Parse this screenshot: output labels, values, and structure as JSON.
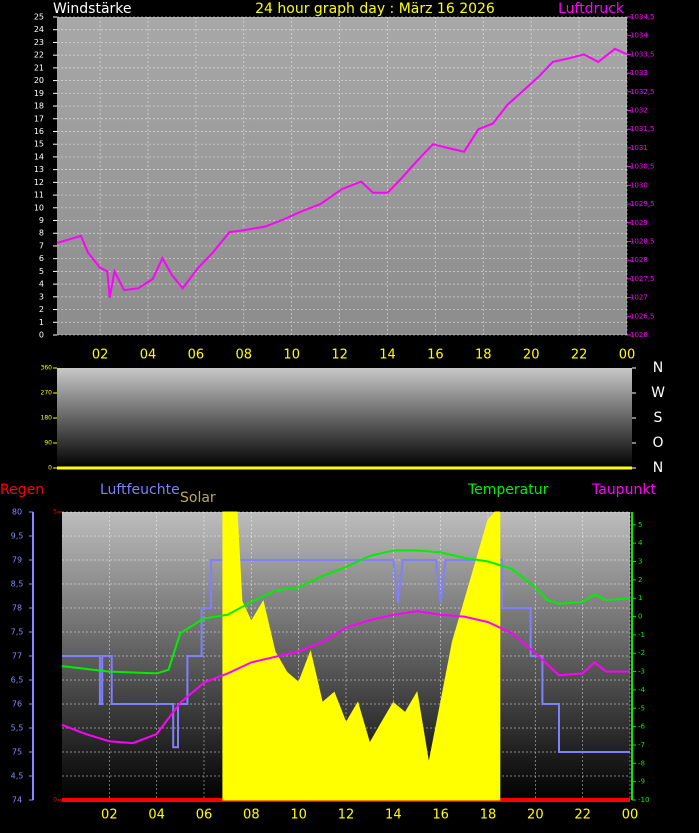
{
  "chart_data": [
    {
      "type": "line",
      "title": "24 hour graph day : März 16 2026",
      "y_label": "Windstärke",
      "xlim": [
        0.2,
        24
      ],
      "xticks": [
        {
          "value": 2,
          "label": "02"
        },
        {
          "value": 4,
          "label": "04"
        },
        {
          "value": 6,
          "label": "06"
        },
        {
          "value": 8,
          "label": "08"
        },
        10,
        12,
        14,
        16,
        18,
        20,
        22,
        {
          "value": 24,
          "label": "00"
        }
      ],
      "ylim": [
        0,
        25
      ],
      "yticks": [
        0,
        1,
        2,
        3,
        4,
        5,
        6,
        7,
        8,
        9,
        10,
        11,
        12,
        13,
        14,
        15,
        16,
        17,
        18,
        19,
        20,
        21,
        22,
        23,
        24,
        25
      ],
      "y2lim": [
        1026,
        1034.5
      ],
      "y2ticks": [
        1026,
        {
          "value": 1026.5,
          "label": "1026,5"
        },
        1027,
        {
          "value": 1027.5,
          "label": "1027,5"
        },
        1028,
        {
          "value": 1028.5,
          "label": "1028,5"
        },
        1029,
        {
          "value": 1029.5,
          "label": "1029,5"
        },
        1030,
        {
          "value": 1030.5,
          "label": "1030,5"
        },
        1031,
        {
          "value": 1031.5,
          "label": "1031,5"
        },
        1032,
        {
          "value": 1032.5,
          "label": "1032,5"
        },
        1033,
        {
          "value": 1033.5,
          "label": "1033,5"
        },
        1034,
        {
          "value": 1034.5,
          "label": "1034,5"
        }
      ],
      "grid": true,
      "series": [
        {
          "name": "Luftdruck",
          "color": "#ff00ff",
          "axis": "y2",
          "x": [
            0.2,
            1.2,
            1.5,
            2.0,
            2.3,
            2.4,
            2.6,
            3.0,
            3.6,
            4.2,
            4.6,
            5.0,
            5.45,
            6.1,
            6.7,
            7.4,
            8.0,
            8.9,
            9.7,
            10.4,
            11.2,
            12.1,
            12.9,
            13.4,
            14.0,
            14.6,
            15.3,
            15.9,
            16.5,
            17.2,
            17.8,
            18.4,
            19.0,
            19.7,
            20.3,
            20.9,
            21.6,
            22.2,
            22.8,
            23.5,
            24
          ],
          "values": [
            1028.46,
            1028.65,
            1028.2,
            1027.8,
            1027.7,
            1027,
            1027.7,
            1027.2,
            1027.25,
            1027.5,
            1028.05,
            1027.6,
            1027.25,
            1027.8,
            1028.2,
            1028.75,
            1028.8,
            1028.9,
            1029.1,
            1029.3,
            1029.5,
            1029.9,
            1030.1,
            1029.8,
            1029.8,
            1030.2,
            1030.7,
            1031.1,
            1031,
            1030.9,
            1031.5,
            1031.65,
            1032.15,
            1032.55,
            1032.9,
            1033.3,
            1033.4,
            1033.5,
            1033.3,
            1033.65,
            1033.5
          ]
        }
      ]
    },
    {
      "type": "line",
      "xlim": [
        0.2,
        24
      ],
      "ylim": [
        0,
        360
      ],
      "yticks": [
        0,
        90,
        180,
        270,
        360
      ],
      "y2lim": [
        0,
        360
      ],
      "y2ticks": [
        {
          "value": 0,
          "label": "N"
        },
        {
          "value": 90,
          "label": "O"
        },
        {
          "value": 180,
          "label": "S"
        },
        {
          "value": 270,
          "label": "W"
        },
        {
          "value": 360,
          "label": "N"
        }
      ],
      "series": []
    },
    {
      "type": "line",
      "xlim": [
        0,
        24
      ],
      "xticks": [
        {
          "value": 2,
          "label": "02"
        },
        {
          "value": 4,
          "label": "04"
        },
        {
          "value": 6,
          "label": "06"
        },
        {
          "value": 8,
          "label": "08"
        },
        10,
        12,
        14,
        16,
        18,
        20,
        22,
        {
          "value": 24,
          "label": "00"
        }
      ],
      "ylim": [
        74,
        80
      ],
      "yticks": [
        74,
        {
          "value": 74.5,
          "label": "4,5"
        },
        75,
        {
          "value": 75.5,
          "label": "5,5"
        },
        76,
        {
          "value": 76.5,
          "label": "6,5"
        },
        77,
        {
          "value": 77.5,
          "label": "7,5"
        },
        78,
        {
          "value": 78.5,
          "label": "8,5"
        },
        79,
        {
          "value": 79.5,
          "label": "9,5"
        },
        80
      ],
      "y2lim": [
        -10,
        5.7
      ],
      "y2ticks": [
        -10,
        -9,
        -8,
        -7,
        -6,
        -5,
        -4,
        -3,
        -2,
        -1,
        0,
        1,
        2,
        3,
        4,
        5
      ],
      "y3lim": [
        0,
        5
      ],
      "y3ticks": [
        0,
        5
      ],
      "grid": true,
      "series": [
        {
          "name": "Regen",
          "color": "#ff0000",
          "axis": "y3",
          "x": [
            0,
            24
          ],
          "values": [
            0,
            0
          ]
        },
        {
          "name": "Luftfeuchte",
          "color": "#8080ff",
          "axis": "y",
          "x": [
            0,
            1.6,
            1.6,
            1.7,
            1.7,
            2.1,
            2.1,
            4.7,
            4.7,
            4.9,
            4.9,
            5.3,
            5.3,
            5.9,
            5.9,
            6.3,
            6.3,
            14.0,
            14.2,
            14.4,
            15.8,
            16.0,
            16.2,
            18.6,
            18.6,
            19.8,
            19.8,
            20.3,
            20.3,
            21,
            21,
            24
          ],
          "values": [
            77,
            77,
            76,
            76,
            77,
            77,
            76,
            76,
            75.1,
            75.1,
            76,
            76,
            77,
            77,
            78,
            78,
            79,
            79,
            78.1,
            79,
            79,
            78.1,
            79,
            79,
            78,
            78,
            77,
            77,
            76,
            76,
            75,
            75
          ]
        },
        {
          "name": "Solar",
          "color": "#ffff00",
          "axis": "y",
          "fill": true,
          "x": [
            6.8,
            6.8,
            7.4,
            7.6,
            8.0,
            8.5,
            9.0,
            9.5,
            10,
            10.5,
            11,
            11.5,
            12,
            12.5,
            13,
            13.5,
            14,
            14.5,
            15,
            15.5,
            16,
            16.5,
            17,
            17.5,
            18,
            18.3,
            18.5,
            18.5
          ],
          "values": [
            74,
            80,
            80,
            78.14,
            77.72,
            78.14,
            77.09,
            76.66,
            76.45,
            77.09,
            76.03,
            76.24,
            75.61,
            76.03,
            75.18,
            75.61,
            76.03,
            75.82,
            76.24,
            74.76,
            76.03,
            77.3,
            78.14,
            78.99,
            79.84,
            80,
            80,
            74
          ]
        },
        {
          "name": "Temperatur",
          "color": "#00ee00",
          "axis": "y2",
          "x": [
            0,
            2,
            4,
            4.5,
            5,
            6,
            7,
            8,
            9,
            10,
            11,
            12,
            13,
            14,
            15,
            16,
            17,
            18,
            19,
            20,
            20.5,
            21,
            22,
            22.5,
            23,
            24
          ],
          "values": [
            -2.7,
            -3,
            -3.1,
            -2.9,
            -0.9,
            -0.1,
            0.1,
            0.8,
            1.4,
            1.6,
            2.2,
            2.7,
            3.3,
            3.6,
            3.6,
            3.5,
            3.2,
            3,
            2.6,
            1.6,
            0.9,
            0.7,
            0.8,
            1.2,
            0.9,
            1
          ]
        },
        {
          "name": "Taupunkt",
          "color": "#ff00ff",
          "axis": "y2",
          "x": [
            0,
            1,
            2,
            3,
            4,
            5,
            6,
            7,
            8,
            9,
            10,
            11,
            12,
            13,
            14,
            15,
            16,
            17,
            18,
            19,
            20,
            21,
            22,
            22.5,
            23,
            24
          ],
          "values": [
            -5.9,
            -6.4,
            -6.8,
            -6.9,
            -6.4,
            -4.7,
            -3.6,
            -3.1,
            -2.5,
            -2.2,
            -1.9,
            -1.4,
            -0.6,
            -0.2,
            0.1,
            0.3,
            0.1,
            0,
            -0.3,
            -0.9,
            -2,
            -3.2,
            -3.1,
            -2.5,
            -3,
            -3
          ]
        }
      ]
    }
  ]
}
